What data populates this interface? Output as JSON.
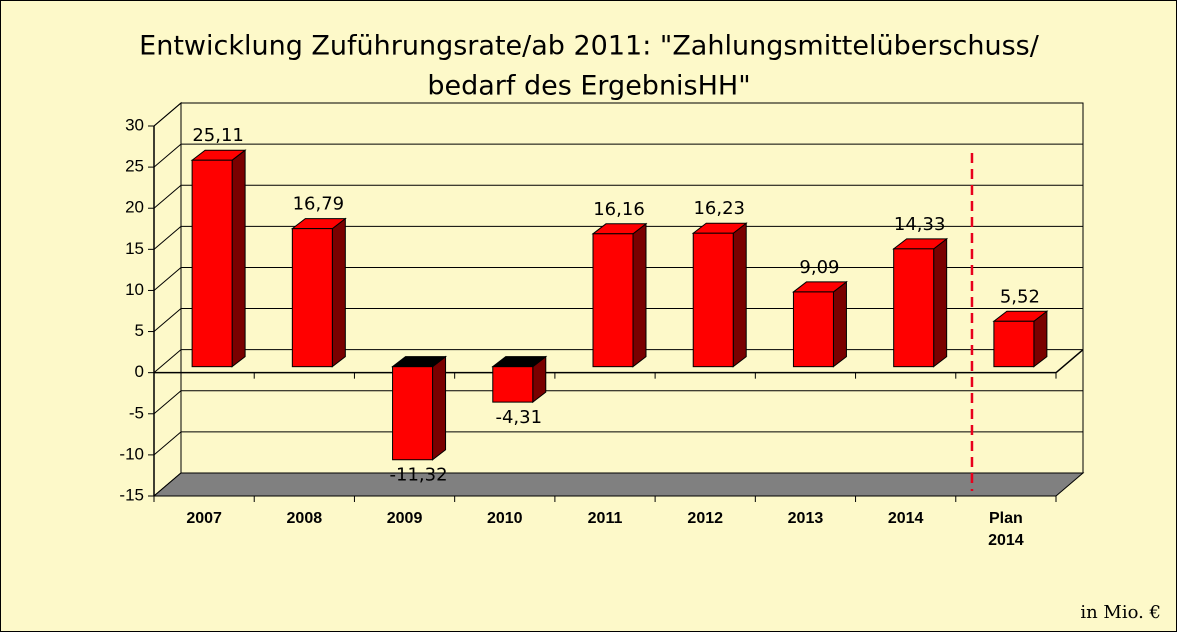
{
  "chart_data": {
    "type": "bar3d",
    "title": "Entwicklung Zuführungsrate/ab 2011: \"Zahlungsmittelüberschuss/",
    "subtitle": "bedarf des ErgebnisHH\"",
    "categories": [
      "2007",
      "2008",
      "2009",
      "2010",
      "2011",
      "2012",
      "2013",
      "2014",
      "Plan 2014"
    ],
    "values": [
      25.11,
      16.79,
      -11.32,
      -4.31,
      16.16,
      16.23,
      9.09,
      14.33,
      5.52
    ],
    "value_labels": [
      "25,11",
      "16,79",
      "-11,32",
      "-4,31",
      "16,16",
      "16,23",
      "9,09",
      "14,33",
      "5,52"
    ],
    "color": "#ff0000",
    "ylim": [
      -15,
      30
    ],
    "yticks": [
      -15,
      -10,
      -5,
      0,
      5,
      10,
      15,
      20,
      25,
      30
    ],
    "grid": true,
    "annotation": "in Mio. €"
  }
}
